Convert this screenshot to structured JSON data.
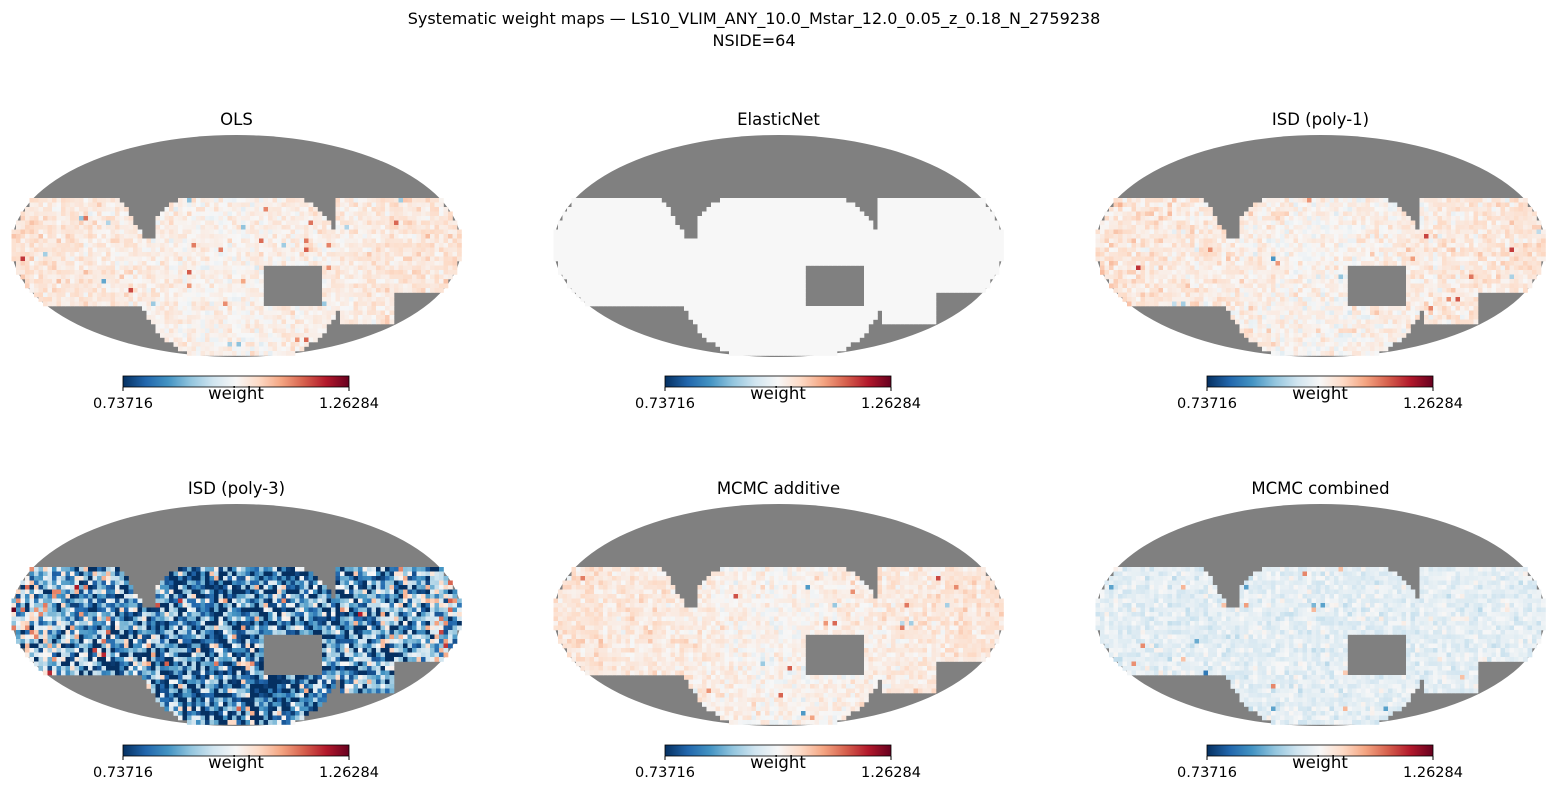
{
  "figure": {
    "title_line1": "Systematic weight maps — LS10_VLIM_ANY_10.0_Mstar_12.0_0.05_z_0.18_N_2759238",
    "title_line2": "NSIDE=64"
  },
  "colors": {
    "masked": "#808080",
    "background": "#ffffff",
    "cmap": "RdBu_r",
    "cmap_stops": [
      "#053061",
      "#2166ac",
      "#4393c3",
      "#92c5de",
      "#d1e5f0",
      "#f7f7f7",
      "#fddbc7",
      "#f4a582",
      "#d6604d",
      "#b2182b",
      "#67001f"
    ]
  },
  "chart_data": [
    {
      "type": "heatmap",
      "projection": "mollweide",
      "title": "OLS",
      "colorbar_label": "weight",
      "vmin": 0.73716,
      "vmax": 1.26284,
      "vmin_label": "0.73716",
      "vmax_label": "1.26284",
      "typical_weight": 1.02,
      "spread": 0.035,
      "bias_pattern": "edges-red"
    },
    {
      "type": "heatmap",
      "projection": "mollweide",
      "title": "ElasticNet",
      "colorbar_label": "weight",
      "vmin": 0.73716,
      "vmax": 1.26284,
      "vmin_label": "0.73716",
      "vmax_label": "1.26284",
      "typical_weight": 1.0,
      "spread": 0.0,
      "bias_pattern": "uniform"
    },
    {
      "type": "heatmap",
      "projection": "mollweide",
      "title": "ISD (poly-1)",
      "colorbar_label": "weight",
      "vmin": 0.73716,
      "vmax": 1.26284,
      "vmin_label": "0.73716",
      "vmax_label": "1.26284",
      "typical_weight": 1.02,
      "spread": 0.04,
      "bias_pattern": "edges-red"
    },
    {
      "type": "heatmap",
      "projection": "mollweide",
      "title": "ISD (poly-3)",
      "colorbar_label": "weight",
      "vmin": 0.73716,
      "vmax": 1.26284,
      "vmin_label": "0.73716",
      "vmax_label": "1.26284",
      "typical_weight": 0.82,
      "spread": 0.12,
      "bias_pattern": "strong"
    },
    {
      "type": "heatmap",
      "projection": "mollweide",
      "title": "MCMC additive",
      "colorbar_label": "weight",
      "vmin": 0.73716,
      "vmax": 1.26284,
      "vmin_label": "0.73716",
      "vmax_label": "1.26284",
      "typical_weight": 1.02,
      "spread": 0.035,
      "bias_pattern": "edges-red"
    },
    {
      "type": "heatmap",
      "projection": "mollweide",
      "title": "MCMC combined",
      "colorbar_label": "weight",
      "vmin": 0.73716,
      "vmax": 1.26284,
      "vmin_label": "0.73716",
      "vmax_label": "1.26284",
      "typical_weight": 0.975,
      "spread": 0.035,
      "bias_pattern": "blue"
    }
  ]
}
